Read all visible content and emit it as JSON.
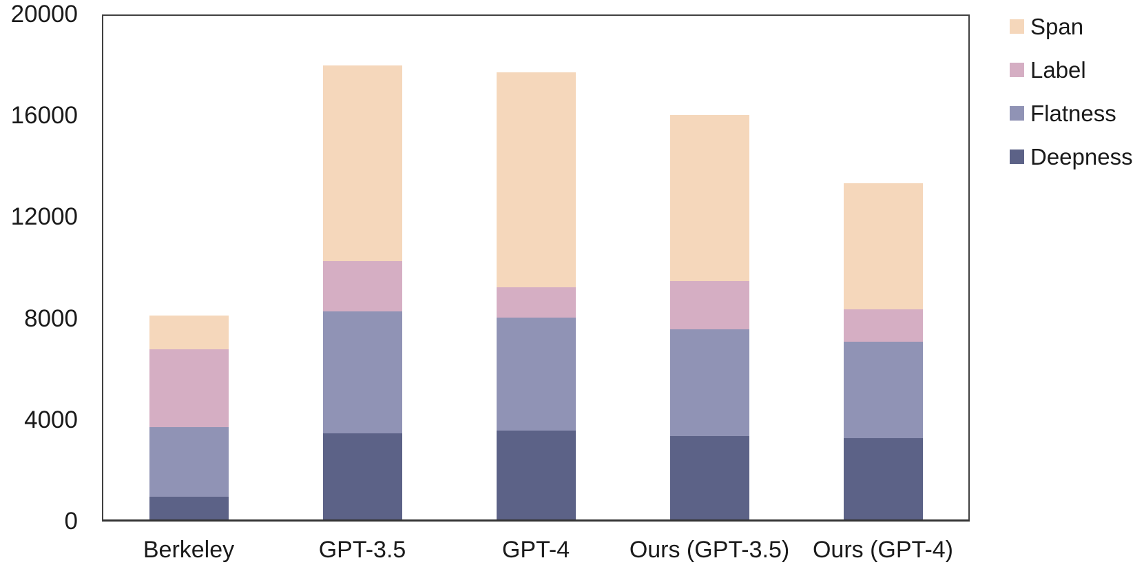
{
  "chart_data": {
    "type": "bar",
    "stacked": true,
    "title": "",
    "xlabel": "",
    "ylabel": "",
    "grid": false,
    "categories": [
      "Berkeley",
      "GPT-3.5",
      "GPT-4",
      "Ours (GPT-3.5)",
      "Ours (GPT-4)"
    ],
    "series": [
      {
        "name": "Deepness",
        "color": "#5C6287",
        "values": [
          900,
          3400,
          3500,
          3300,
          3200
        ]
      },
      {
        "name": "Flatness",
        "color": "#9093B5",
        "values": [
          2750,
          4800,
          4450,
          4200,
          3800
        ]
      },
      {
        "name": "Label",
        "color": "#D5AEC3",
        "values": [
          3050,
          2000,
          1200,
          1900,
          1300
        ]
      },
      {
        "name": "Span",
        "color": "#F5D7BB",
        "values": [
          1350,
          7700,
          8500,
          6550,
          4950
        ]
      }
    ],
    "totals": [
      8050,
      17900,
      17650,
      15950,
      13250
    ],
    "y_axis": {
      "min": 0,
      "max": 20000,
      "tick_step": 4000,
      "tick_labels_top_to_bottom": [
        "20000",
        "16000",
        "12000",
        "8000",
        "4000",
        "0"
      ]
    },
    "legend": {
      "position": "top-right",
      "order_top_to_bottom": [
        "Span",
        "Label",
        "Flatness",
        "Deepness"
      ]
    }
  },
  "style": {
    "background": "#ffffff",
    "text_color": "#1a1a1a",
    "plot_border_color": "#404040",
    "axis_line_color": "#333333"
  }
}
